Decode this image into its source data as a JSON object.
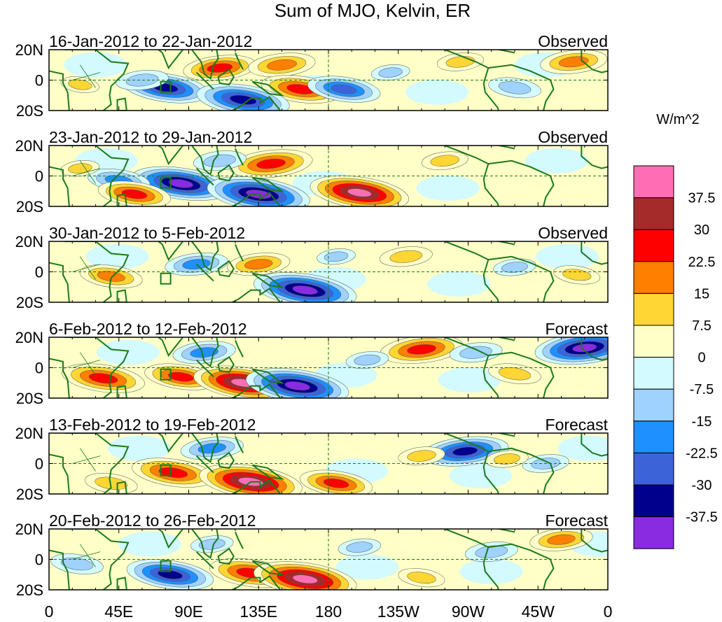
{
  "chart_data": {
    "type": "heatmap",
    "title": "Sum of MJO, Kelvin, ER",
    "colorbar_unit": "W/m^2",
    "colorbar_levels": [
      "37.5",
      "30",
      "22.5",
      "15",
      "7.5",
      "0",
      "-7.5",
      "-15",
      "-22.5",
      "-30",
      "-37.5"
    ],
    "colorbar_colors": [
      "#FF6EB4",
      "#A52A2A",
      "#FF0000",
      "#FF7F00",
      "#FFD633",
      "#FFFFC8",
      "#D2FAFF",
      "#A0D2FF",
      "#1E90FF",
      "#3C64D8",
      "#00008C",
      "#8A2BE2"
    ],
    "x_ticks": [
      "0",
      "45E",
      "90E",
      "135E",
      "180",
      "135W",
      "90W",
      "45W",
      "0"
    ],
    "x_tick_values": [
      0,
      45,
      90,
      135,
      180,
      225,
      270,
      315,
      360
    ],
    "y_ticks": [
      "20N",
      "0",
      "20S"
    ],
    "y_tick_values": [
      20,
      0,
      -20
    ],
    "xlim": [
      0,
      360
    ],
    "ylim": [
      -20,
      20
    ],
    "panels": [
      {
        "date_range": "16-Jan-2012 to 22-Jan-2012",
        "label": "Observed",
        "features": [
          {
            "lon": 110,
            "lat": 8,
            "value": 25
          },
          {
            "lon": 150,
            "lat": 10,
            "value": 22
          },
          {
            "lon": 162,
            "lat": -6,
            "value": 28
          },
          {
            "lon": 75,
            "lat": -5,
            "value": -32
          },
          {
            "lon": 125,
            "lat": -13,
            "value": -35
          },
          {
            "lon": 60,
            "lat": 0,
            "value": -15
          },
          {
            "lon": 190,
            "lat": -6,
            "value": -25
          },
          {
            "lon": 265,
            "lat": 12,
            "value": 12
          },
          {
            "lon": 338,
            "lat": 12,
            "value": 22
          },
          {
            "lon": 300,
            "lat": -5,
            "value": -15
          },
          {
            "lon": 220,
            "lat": 5,
            "value": -8
          },
          {
            "lon": 20,
            "lat": -3,
            "value": 8
          }
        ]
      },
      {
        "date_range": "23-Jan-2012 to 29-Jan-2012",
        "label": "Observed",
        "features": [
          {
            "lon": 143,
            "lat": 8,
            "value": 30
          },
          {
            "lon": 200,
            "lat": -11,
            "value": 38
          },
          {
            "lon": 85,
            "lat": -5,
            "value": -38
          },
          {
            "lon": 135,
            "lat": -12,
            "value": -40
          },
          {
            "lon": 110,
            "lat": 10,
            "value": -15
          },
          {
            "lon": 45,
            "lat": -3,
            "value": -20
          },
          {
            "lon": 55,
            "lat": -12,
            "value": 25
          },
          {
            "lon": 255,
            "lat": 10,
            "value": 12
          },
          {
            "lon": 20,
            "lat": 5,
            "value": 8
          }
        ]
      },
      {
        "date_range": "30-Jan-2012 to 5-Feb-2012",
        "label": "Observed",
        "features": [
          {
            "lon": 40,
            "lat": -3,
            "value": 20
          },
          {
            "lon": 135,
            "lat": 5,
            "value": 20
          },
          {
            "lon": 165,
            "lat": -12,
            "value": -40
          },
          {
            "lon": 95,
            "lat": 5,
            "value": -20
          },
          {
            "lon": 230,
            "lat": 10,
            "value": 15
          },
          {
            "lon": 300,
            "lat": 3,
            "value": -10
          },
          {
            "lon": 340,
            "lat": -2,
            "value": 12
          },
          {
            "lon": 185,
            "lat": 10,
            "value": -8
          }
        ]
      },
      {
        "date_range": "6-Feb-2012 to 12-Feb-2012",
        "label": "Forecast",
        "features": [
          {
            "lon": 35,
            "lat": -7,
            "value": 30
          },
          {
            "lon": 85,
            "lat": -6,
            "value": 25
          },
          {
            "lon": 125,
            "lat": -10,
            "value": 38
          },
          {
            "lon": 160,
            "lat": -12,
            "value": -40
          },
          {
            "lon": 240,
            "lat": 12,
            "value": 30
          },
          {
            "lon": 345,
            "lat": 13,
            "value": -38
          },
          {
            "lon": 100,
            "lat": 10,
            "value": -20
          },
          {
            "lon": 275,
            "lat": 10,
            "value": -15
          },
          {
            "lon": 300,
            "lat": -4,
            "value": 15
          },
          {
            "lon": 205,
            "lat": 5,
            "value": -10
          }
        ]
      },
      {
        "date_range": "13-Feb-2012 to 19-Feb-2012",
        "label": "Forecast",
        "features": [
          {
            "lon": 80,
            "lat": -6,
            "value": 30
          },
          {
            "lon": 130,
            "lat": -12,
            "value": 40
          },
          {
            "lon": 185,
            "lat": -13,
            "value": 25
          },
          {
            "lon": 105,
            "lat": 10,
            "value": -20
          },
          {
            "lon": 268,
            "lat": 8,
            "value": -32
          },
          {
            "lon": 240,
            "lat": 5,
            "value": 12
          },
          {
            "lon": 320,
            "lat": 0,
            "value": -12
          },
          {
            "lon": 40,
            "lat": -13,
            "value": 15
          },
          {
            "lon": 295,
            "lat": 3,
            "value": 10
          }
        ]
      },
      {
        "date_range": "20-Feb-2012 to 26-Feb-2012",
        "label": "Forecast",
        "features": [
          {
            "lon": 130,
            "lat": -9,
            "value": 30
          },
          {
            "lon": 165,
            "lat": -13,
            "value": 40
          },
          {
            "lon": 78,
            "lat": -10,
            "value": -32
          },
          {
            "lon": 18,
            "lat": -3,
            "value": -15
          },
          {
            "lon": 285,
            "lat": 5,
            "value": -15
          },
          {
            "lon": 330,
            "lat": 13,
            "value": 20
          },
          {
            "lon": 200,
            "lat": 8,
            "value": -10
          },
          {
            "lon": 240,
            "lat": -12,
            "value": 12
          },
          {
            "lon": 105,
            "lat": 10,
            "value": -10
          }
        ]
      }
    ]
  }
}
